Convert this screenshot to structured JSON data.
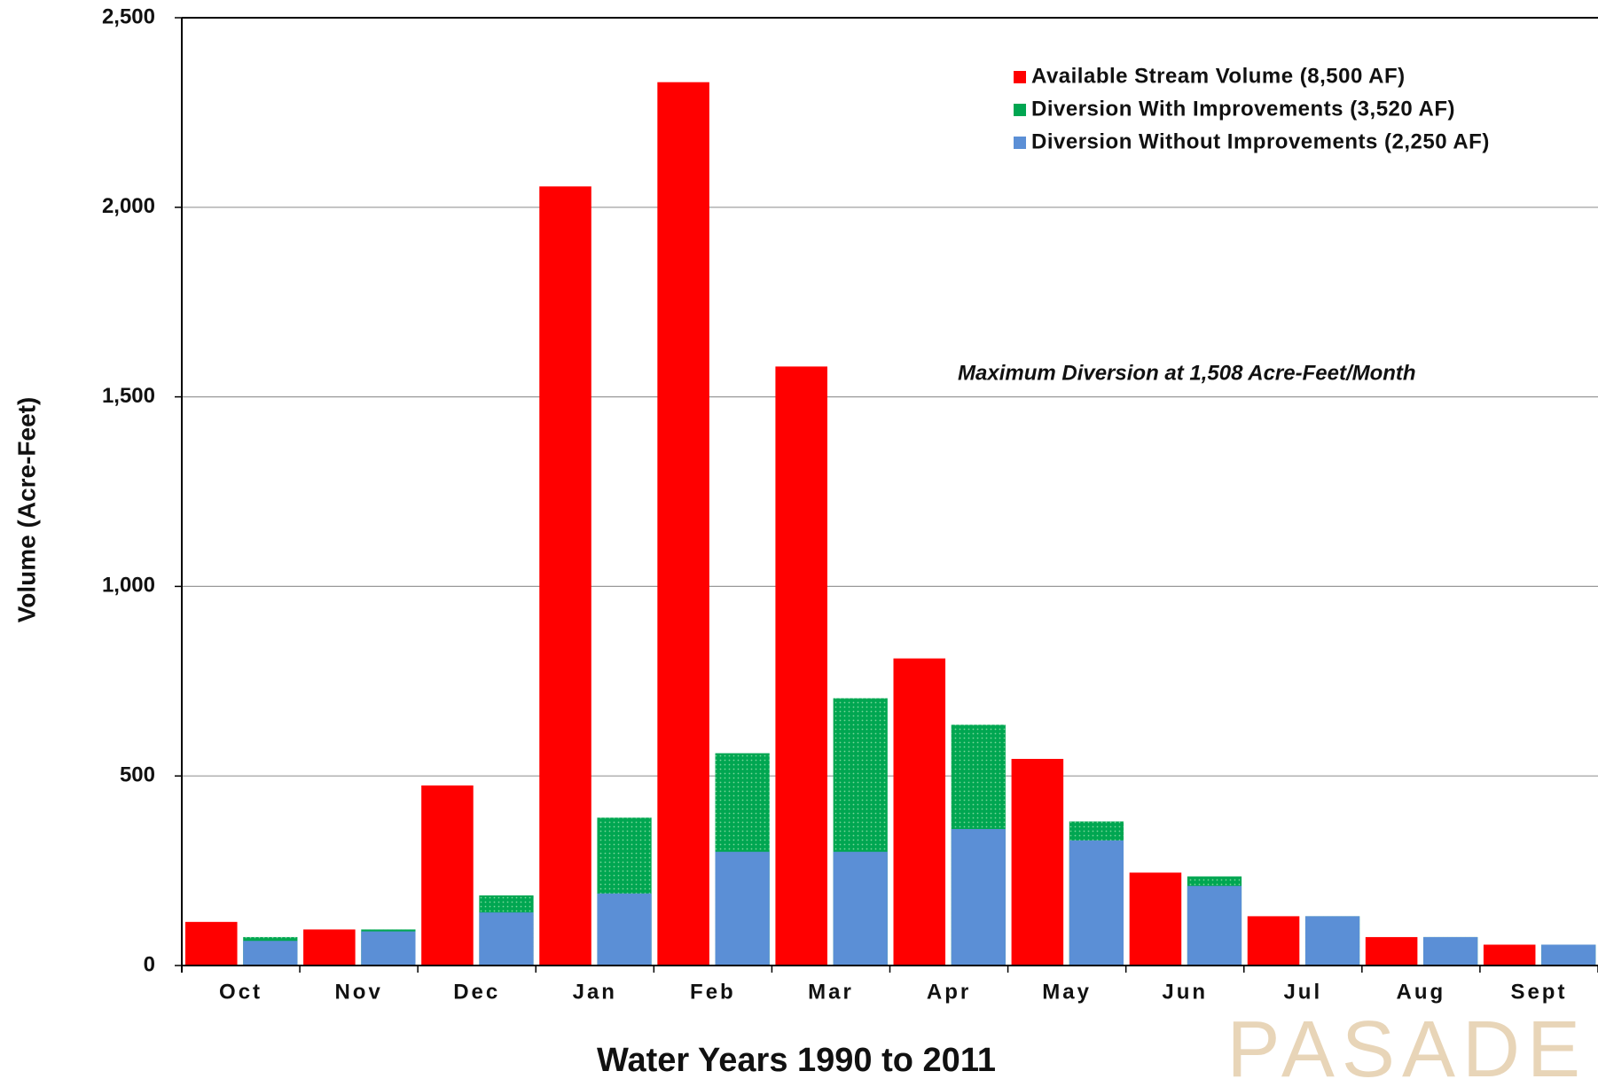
{
  "chart_data": {
    "type": "bar",
    "x_label": "Water Years 1990 to 2011",
    "y_label": "Volume (Acre-Feet)",
    "annotation": "Maximum  Diversion at 1,508 Acre-Feet/Month",
    "watermark": "PASADE",
    "categories": [
      "Oct",
      "Nov",
      "Dec",
      "Jan",
      "Feb",
      "Mar",
      "Apr",
      "May",
      "Jun",
      "Jul",
      "Aug",
      "Sept"
    ],
    "series": [
      {
        "name": "Available Stream Volume (8,500 AF)",
        "color": "#ff0000",
        "values": [
          115,
          95,
          475,
          2055,
          2330,
          1580,
          810,
          545,
          245,
          130,
          75,
          55
        ]
      },
      {
        "name": "Diversion With Improvements (3,520 AF)",
        "color": "#00a651",
        "values": [
          75,
          95,
          185,
          390,
          560,
          705,
          635,
          380,
          235,
          130,
          75,
          55
        ]
      },
      {
        "name": "Diversion Without Improvements (2,250 AF)",
        "color": "#5b8fd6",
        "values": [
          65,
          90,
          140,
          190,
          300,
          300,
          360,
          330,
          210,
          130,
          75,
          55
        ]
      }
    ],
    "ylim": [
      0,
      2500
    ],
    "yticks": [
      0,
      500,
      {
        "value": 1000,
        "label": "1,000"
      },
      {
        "value": 1500,
        "label": "1,500"
      },
      {
        "value": 2000,
        "label": "2,000"
      },
      {
        "value": 2500,
        "label": "2,500"
      }
    ],
    "grid": true,
    "legend": "upper right"
  }
}
